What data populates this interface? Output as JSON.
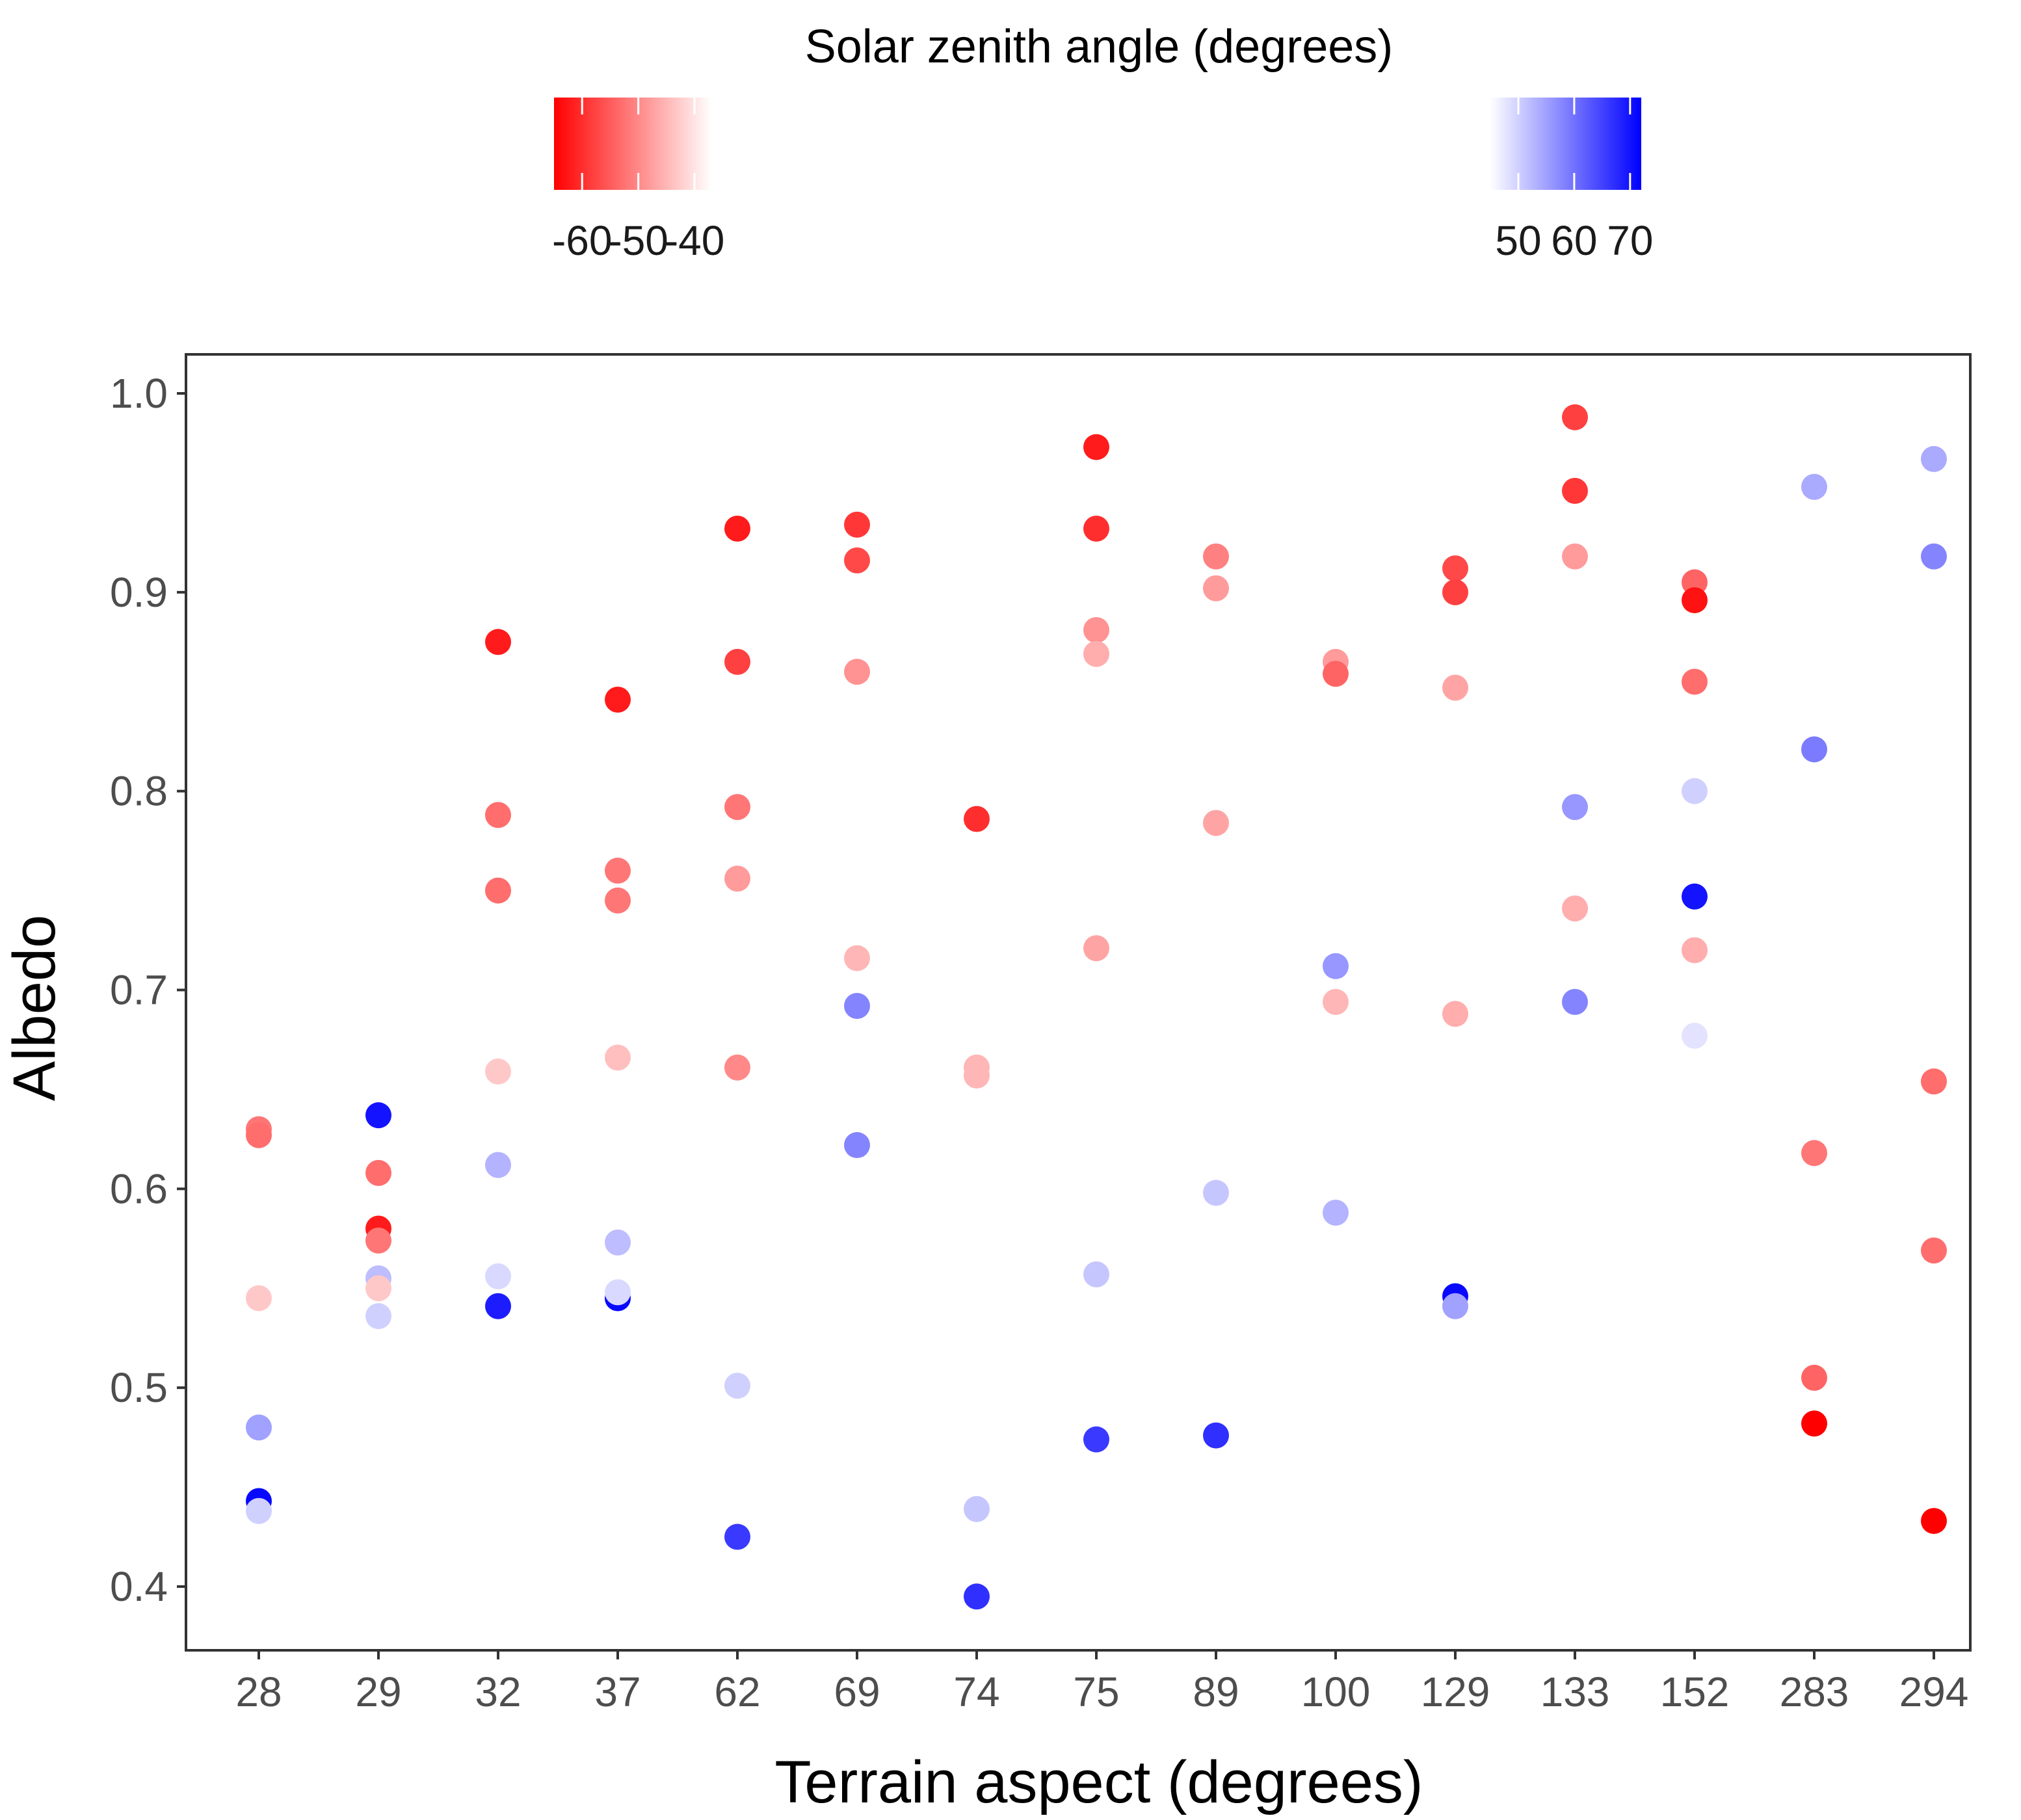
{
  "chart_data": {
    "type": "scatter",
    "xlabel": "Terrain aspect (degrees)",
    "ylabel": "Albedo",
    "categories": [
      "28",
      "29",
      "32",
      "37",
      "62",
      "69",
      "74",
      "75",
      "89",
      "100",
      "129",
      "133",
      "152",
      "283",
      "294"
    ],
    "ylim": [
      0.38,
      1.02
    ],
    "yticks": [
      "0.4",
      "0.5",
      "0.6",
      "0.7",
      "0.8",
      "0.9",
      "1.0"
    ],
    "grid": false,
    "legend": {
      "title": "Solar zenith angle (degrees)",
      "placement": "top",
      "negative_range": [
        -65,
        -37
      ],
      "negative_ticks": [
        "-60",
        "-50",
        "-40"
      ],
      "positive_range": [
        45,
        72
      ],
      "positive_ticks": [
        "50",
        "60",
        "70"
      ],
      "low_color": "#ff0000",
      "mid_color": "#ffffff",
      "high_color": "#0000ff"
    },
    "points": [
      {
        "x": "28",
        "albedo": 0.63,
        "sza": -52
      },
      {
        "x": "28",
        "albedo": 0.627,
        "sza": -53
      },
      {
        "x": "28",
        "albedo": 0.545,
        "sza": -43
      },
      {
        "x": "28",
        "albedo": 0.48,
        "sza": 55
      },
      {
        "x": "28",
        "albedo": 0.443,
        "sza": 71
      },
      {
        "x": "28",
        "albedo": 0.438,
        "sza": 50
      },
      {
        "x": "29",
        "albedo": 0.637,
        "sza": 70
      },
      {
        "x": "29",
        "albedo": 0.608,
        "sza": -53
      },
      {
        "x": "29",
        "albedo": 0.58,
        "sza": -62
      },
      {
        "x": "29",
        "albedo": 0.574,
        "sza": -52
      },
      {
        "x": "29",
        "albedo": 0.555,
        "sza": 52
      },
      {
        "x": "29",
        "albedo": 0.55,
        "sza": -43
      },
      {
        "x": "29",
        "albedo": 0.536,
        "sza": 50
      },
      {
        "x": "32",
        "albedo": 0.875,
        "sza": -62
      },
      {
        "x": "32",
        "albedo": 0.788,
        "sza": -53
      },
      {
        "x": "32",
        "albedo": 0.75,
        "sza": -53
      },
      {
        "x": "32",
        "albedo": 0.659,
        "sza": -43
      },
      {
        "x": "32",
        "albedo": 0.612,
        "sza": 53
      },
      {
        "x": "32",
        "albedo": 0.556,
        "sza": 49
      },
      {
        "x": "32",
        "albedo": 0.541,
        "sza": 69
      },
      {
        "x": "37",
        "albedo": 0.846,
        "sza": -62
      },
      {
        "x": "37",
        "albedo": 0.76,
        "sza": -52
      },
      {
        "x": "37",
        "albedo": 0.745,
        "sza": -52
      },
      {
        "x": "37",
        "albedo": 0.666,
        "sza": -44
      },
      {
        "x": "37",
        "albedo": 0.573,
        "sza": 52
      },
      {
        "x": "37",
        "albedo": 0.545,
        "sza": 71
      },
      {
        "x": "37",
        "albedo": 0.548,
        "sza": 49
      },
      {
        "x": "62",
        "albedo": 0.932,
        "sza": -62
      },
      {
        "x": "62",
        "albedo": 0.865,
        "sza": -58
      },
      {
        "x": "62",
        "albedo": 0.792,
        "sza": -52
      },
      {
        "x": "62",
        "albedo": 0.756,
        "sza": -48
      },
      {
        "x": "62",
        "albedo": 0.661,
        "sza": -50
      },
      {
        "x": "62",
        "albedo": 0.501,
        "sza": 50
      },
      {
        "x": "62",
        "albedo": 0.425,
        "sza": 66
      },
      {
        "x": "69",
        "albedo": 0.934,
        "sza": -59
      },
      {
        "x": "69",
        "albedo": 0.916,
        "sza": -57
      },
      {
        "x": "69",
        "albedo": 0.86,
        "sza": -49
      },
      {
        "x": "69",
        "albedo": 0.716,
        "sza": -45
      },
      {
        "x": "69",
        "albedo": 0.692,
        "sza": 58
      },
      {
        "x": "69",
        "albedo": 0.622,
        "sza": 58
      },
      {
        "x": "74",
        "albedo": 0.786,
        "sza": -60
      },
      {
        "x": "74",
        "albedo": 0.661,
        "sza": -45
      },
      {
        "x": "74",
        "albedo": 0.657,
        "sza": -45
      },
      {
        "x": "74",
        "albedo": 0.439,
        "sza": 51
      },
      {
        "x": "74",
        "albedo": 0.395,
        "sza": 67
      },
      {
        "x": "75",
        "albedo": 0.973,
        "sza": -62
      },
      {
        "x": "75",
        "albedo": 0.932,
        "sza": -60
      },
      {
        "x": "75",
        "albedo": 0.881,
        "sza": -49
      },
      {
        "x": "75",
        "albedo": 0.869,
        "sza": -46
      },
      {
        "x": "75",
        "albedo": 0.721,
        "sza": -47
      },
      {
        "x": "75",
        "albedo": 0.557,
        "sza": 51
      },
      {
        "x": "75",
        "albedo": 0.474,
        "sza": 66
      },
      {
        "x": "89",
        "albedo": 0.918,
        "sza": -51
      },
      {
        "x": "89",
        "albedo": 0.902,
        "sza": -48
      },
      {
        "x": "89",
        "albedo": 0.784,
        "sza": -47
      },
      {
        "x": "89",
        "albedo": 0.598,
        "sza": 51
      },
      {
        "x": "89",
        "albedo": 0.476,
        "sza": 67
      },
      {
        "x": "100",
        "albedo": 0.865,
        "sza": -48
      },
      {
        "x": "100",
        "albedo": 0.859,
        "sza": -54
      },
      {
        "x": "100",
        "albedo": 0.712,
        "sza": 56
      },
      {
        "x": "100",
        "albedo": 0.694,
        "sza": -45
      },
      {
        "x": "100",
        "albedo": 0.588,
        "sza": 53
      },
      {
        "x": "129",
        "albedo": 0.912,
        "sza": -57
      },
      {
        "x": "129",
        "albedo": 0.9,
        "sza": -58
      },
      {
        "x": "129",
        "albedo": 0.852,
        "sza": -47
      },
      {
        "x": "129",
        "albedo": 0.688,
        "sza": -46
      },
      {
        "x": "129",
        "albedo": 0.546,
        "sza": 71
      },
      {
        "x": "129",
        "albedo": 0.541,
        "sza": 55
      },
      {
        "x": "133",
        "albedo": 0.988,
        "sza": -58
      },
      {
        "x": "133",
        "albedo": 0.951,
        "sza": -59
      },
      {
        "x": "133",
        "albedo": 0.918,
        "sza": -48
      },
      {
        "x": "133",
        "albedo": 0.792,
        "sza": 56
      },
      {
        "x": "133",
        "albedo": 0.741,
        "sza": -46
      },
      {
        "x": "133",
        "albedo": 0.694,
        "sza": 58
      },
      {
        "x": "152",
        "albedo": 0.905,
        "sza": -54
      },
      {
        "x": "152",
        "albedo": 0.896,
        "sza": -63
      },
      {
        "x": "152",
        "albedo": 0.855,
        "sza": -53
      },
      {
        "x": "152",
        "albedo": 0.8,
        "sza": 50
      },
      {
        "x": "152",
        "albedo": 0.747,
        "sza": 70
      },
      {
        "x": "152",
        "albedo": 0.72,
        "sza": -46
      },
      {
        "x": "152",
        "albedo": 0.677,
        "sza": 48
      },
      {
        "x": "283",
        "albedo": 0.953,
        "sza": 54
      },
      {
        "x": "283",
        "albedo": 0.821,
        "sza": 59
      },
      {
        "x": "283",
        "albedo": 0.618,
        "sza": -52
      },
      {
        "x": "283",
        "albedo": 0.505,
        "sza": -54
      },
      {
        "x": "283",
        "albedo": 0.482,
        "sza": -65
      },
      {
        "x": "294",
        "albedo": 0.967,
        "sza": 54
      },
      {
        "x": "294",
        "albedo": 0.918,
        "sza": 58
      },
      {
        "x": "294",
        "albedo": 0.654,
        "sza": -53
      },
      {
        "x": "294",
        "albedo": 0.569,
        "sza": -53
      },
      {
        "x": "294",
        "albedo": 0.433,
        "sza": -65
      }
    ]
  }
}
